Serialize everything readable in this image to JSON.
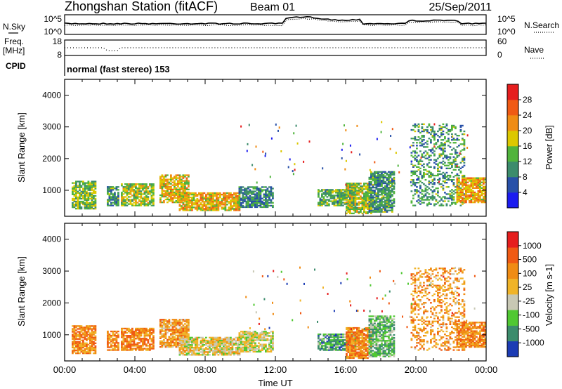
{
  "header": {
    "station": "Zhongshan Station (fitACF)",
    "beam": "Beam 01",
    "date": "25/Sep/2011",
    "cpid_label": "CPID",
    "cpid_value": "normal (fast stereo) 153"
  },
  "noise_panel": {
    "left_label": "N.Sky",
    "right_label": "N.Search",
    "left_ticks": [
      "10^5",
      "10^0"
    ],
    "right_ticks": [
      "10^5",
      "10^0"
    ]
  },
  "freq_panel": {
    "left_label_1": "Freq.",
    "left_label_2": "[MHz]",
    "right_label": "Nave",
    "left_ticks": [
      "18",
      "8"
    ],
    "right_ticks": [
      "60",
      "0"
    ]
  },
  "colors": {
    "power_scale": [
      "#1c1cf0",
      "#2850a8",
      "#3c8c6c",
      "#50b43c",
      "#dcc800",
      "#f08c14",
      "#f05a14",
      "#e61e1e"
    ],
    "velocity_scale": [
      "#e61e1e",
      "#f05a14",
      "#f08c14",
      "#f0b428",
      "#c8c8b4",
      "#50c832",
      "#3c8c6c",
      "#1c3cb4"
    ]
  },
  "chart_data": [
    {
      "type": "heatmap",
      "title": "Power",
      "xlabel": "",
      "ylabel": "Slant Range [km]",
      "x_range_hours": [
        0,
        24
      ],
      "y_range_km": [
        180,
        4500
      ],
      "y_ticks": [
        "1000",
        "2000",
        "3000",
        "4000"
      ],
      "colorbar_label": "Power [dB]",
      "colorbar_ticks": [
        "4",
        "8",
        "12",
        "16",
        "20",
        "24",
        "28"
      ],
      "regions": [
        {
          "t0": 0.4,
          "t1": 1.8,
          "r0": 400,
          "r1": 1300,
          "level": 0.45
        },
        {
          "t0": 2.4,
          "t1": 3.1,
          "r0": 500,
          "r1": 1100,
          "level": 0.35
        },
        {
          "t0": 3.2,
          "t1": 5.0,
          "r0": 500,
          "r1": 1200,
          "level": 0.5
        },
        {
          "t0": 5.4,
          "t1": 7.0,
          "r0": 600,
          "r1": 1500,
          "level": 0.6
        },
        {
          "t0": 6.5,
          "t1": 9.9,
          "r0": 350,
          "r1": 900,
          "level": 0.62
        },
        {
          "t0": 9.9,
          "t1": 11.8,
          "r0": 450,
          "r1": 1100,
          "level": 0.3
        },
        {
          "t0": 14.4,
          "t1": 16.6,
          "r0": 500,
          "r1": 1000,
          "level": 0.4
        },
        {
          "t0": 16.0,
          "t1": 17.5,
          "r0": 250,
          "r1": 1200,
          "level": 0.5
        },
        {
          "t0": 17.3,
          "t1": 18.8,
          "r0": 300,
          "r1": 1600,
          "level": 0.35
        },
        {
          "t0": 19.7,
          "t1": 22.8,
          "r0": 500,
          "r1": 3100,
          "level": 0.35
        },
        {
          "t0": 22.3,
          "t1": 24.0,
          "r0": 600,
          "r1": 1400,
          "level": 0.65
        }
      ]
    },
    {
      "type": "heatmap",
      "title": "Velocity",
      "xlabel": "Time UT",
      "ylabel": "Slant Range [km]",
      "x_range_hours": [
        0,
        24
      ],
      "x_ticks": [
        "00:00",
        "04:00",
        "08:00",
        "12:00",
        "16:00",
        "20:00",
        "00:00"
      ],
      "y_range_km": [
        180,
        4500
      ],
      "y_ticks": [
        "1000",
        "2000",
        "3000",
        "4000"
      ],
      "colorbar_label": "Velocity [m s-1]",
      "colorbar_ticks": [
        "1000",
        "500",
        "100",
        "25",
        "-25",
        "-100",
        "-500",
        "-1000"
      ],
      "regions": [
        {
          "t0": 0.4,
          "t1": 1.8,
          "r0": 400,
          "r1": 1300,
          "level": 0.3
        },
        {
          "t0": 2.4,
          "t1": 3.1,
          "r0": 500,
          "r1": 1100,
          "level": 0.3
        },
        {
          "t0": 3.2,
          "t1": 5.0,
          "r0": 500,
          "r1": 1200,
          "level": 0.3
        },
        {
          "t0": 5.4,
          "t1": 7.0,
          "r0": 600,
          "r1": 1500,
          "level": 0.35
        },
        {
          "t0": 6.5,
          "t1": 9.9,
          "r0": 350,
          "r1": 900,
          "level": 0.5
        },
        {
          "t0": 9.9,
          "t1": 11.8,
          "r0": 450,
          "r1": 1100,
          "level": 0.55
        },
        {
          "t0": 14.4,
          "t1": 16.6,
          "r0": 500,
          "r1": 1000,
          "level": 0.75
        },
        {
          "t0": 16.0,
          "t1": 17.5,
          "r0": 250,
          "r1": 1200,
          "level": 0.3
        },
        {
          "t0": 17.3,
          "t1": 18.8,
          "r0": 300,
          "r1": 1600,
          "level": 0.7
        },
        {
          "t0": 19.7,
          "t1": 22.8,
          "r0": 500,
          "r1": 3100,
          "level": 0.35
        },
        {
          "t0": 22.3,
          "t1": 24.0,
          "r0": 600,
          "r1": 1400,
          "level": 0.3
        }
      ]
    }
  ]
}
